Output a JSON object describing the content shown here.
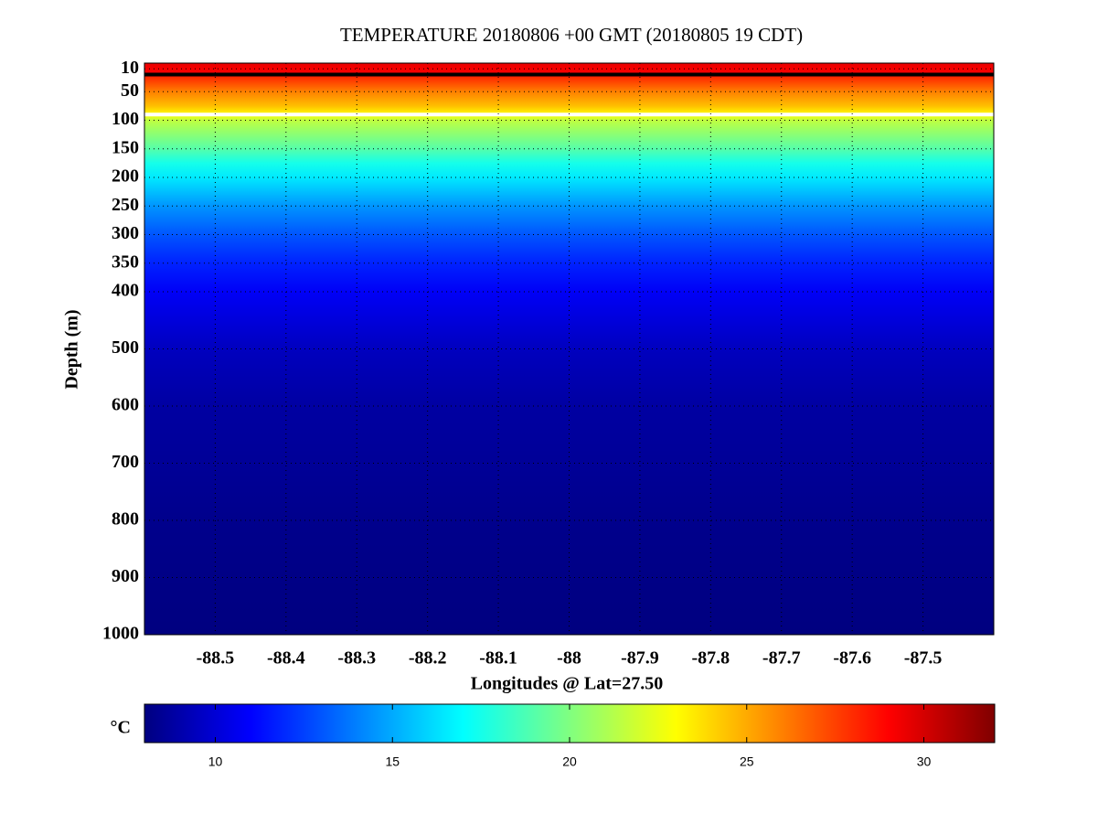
{
  "chart_data": {
    "type": "section",
    "title": "TEMPERATURE 20180806 +00 GMT (20180805 19 CDT)",
    "x_label": "Longitudes @ Lat=27.50",
    "y_label": "Depth (m)",
    "xlim": [
      -88.6,
      -87.4
    ],
    "xticks": [
      -88.5,
      -88.4,
      -88.3,
      -88.2,
      -88.1,
      -88,
      -87.9,
      -87.8,
      -87.7,
      -87.6,
      -87.5
    ],
    "ylim": [
      0,
      1000
    ],
    "y_reversed": true,
    "yticks": [
      10,
      50,
      100,
      150,
      200,
      250,
      300,
      350,
      400,
      500,
      600,
      700,
      800,
      900,
      1000
    ],
    "grid": true,
    "colormap": "jet",
    "depths": [
      0,
      20,
      25,
      50,
      75,
      90,
      100,
      150,
      175,
      200,
      250,
      300,
      350,
      400,
      500,
      600,
      800,
      1000
    ],
    "values": [
      29.5,
      29,
      28,
      26,
      24.5,
      23,
      21.5,
      19,
      17.5,
      16.5,
      14.5,
      13,
      11.8,
      10.8,
      9.5,
      8.8,
      8.3,
      8
    ],
    "contours": [
      {
        "level": 29,
        "color": "#000000"
      },
      {
        "level": 23,
        "color": "#ffffff"
      }
    ],
    "colorbar_label": "°C",
    "clim": [
      8,
      32
    ],
    "cticks": [
      10,
      15,
      20,
      25,
      30
    ]
  }
}
